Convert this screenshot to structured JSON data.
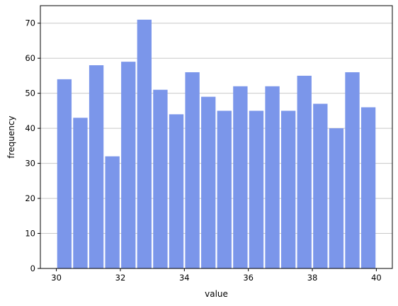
{
  "chart_data": {
    "type": "bar",
    "histogram": true,
    "bin_edges": [
      30.0,
      30.5,
      31.0,
      31.5,
      32.0,
      32.5,
      33.0,
      33.5,
      34.0,
      34.5,
      35.0,
      35.5,
      36.0,
      36.5,
      37.0,
      37.5,
      38.0,
      38.5,
      39.0,
      39.5,
      40.0
    ],
    "values": [
      54,
      43,
      58,
      32,
      59,
      71,
      51,
      44,
      56,
      49,
      45,
      52,
      45,
      52,
      45,
      55,
      47,
      40,
      56,
      46
    ],
    "xlabel": "value",
    "ylabel": "frequency",
    "xlim": [
      29.5,
      40.5
    ],
    "ylim": [
      0,
      75
    ],
    "xticks": [
      30,
      32,
      34,
      36,
      38,
      40
    ],
    "yticks": [
      0,
      10,
      20,
      30,
      40,
      50,
      60,
      70
    ],
    "grid": "y",
    "bar_color": "#7b96ea",
    "grid_color": "#c8c8c8"
  }
}
